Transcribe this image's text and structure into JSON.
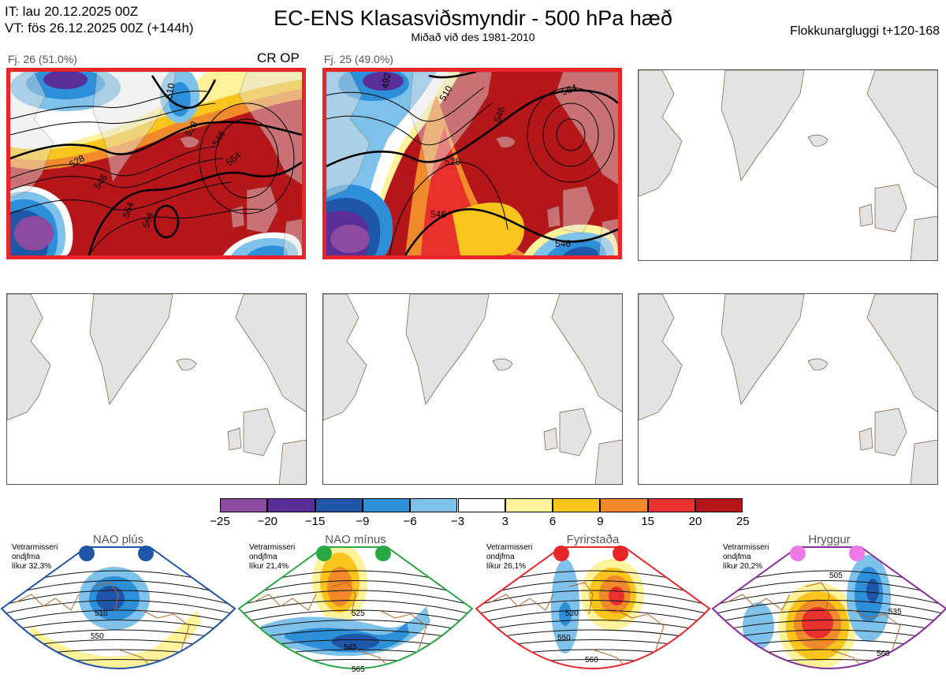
{
  "header": {
    "it_line": "IT: lau 20.12.2025 00Z",
    "vt_line": "VT: fös 26.12.2025 00Z  (+144h)",
    "title": "EC-ENS Klasasviðsmyndir - 500 hPa hæð",
    "subtitle": "Miðað við des 1981-2010",
    "window": "Flokkunargluggi t+120-168"
  },
  "clusters": [
    {
      "label": "Fj. 26 (51.0%)",
      "tag": "CR OP",
      "contours": [
        "528",
        "546",
        "564",
        "510",
        "546",
        "528",
        "564"
      ]
    },
    {
      "label": "Fj. 25 (49.0%)",
      "tag": "",
      "contours": [
        "510",
        "528",
        "546",
        "564",
        "546",
        "546",
        "564",
        "492"
      ]
    }
  ],
  "colorbar": {
    "ticks": [
      "−25",
      "−20",
      "−15",
      "−9",
      "−6",
      "−3",
      "3",
      "6",
      "9",
      "15",
      "20",
      "25"
    ],
    "colors": [
      "#8c4aa0",
      "#5a2e98",
      "#1f56a8",
      "#2c8fd8",
      "#7ec1ea",
      "#ffffff",
      "#fff29a",
      "#f9c51c",
      "#f08a2a",
      "#e8302c",
      "#b4161a"
    ]
  },
  "regimes": [
    {
      "name": "NAO plús",
      "info1": "Vetrarmisseri",
      "info2": "ondjfma",
      "info3": "líkur 32,3%",
      "color": "#1f56a8",
      "dot": "#1f56a8",
      "contours": [
        "510",
        "550"
      ]
    },
    {
      "name": "NAO mínus",
      "info1": "Vetrarmisseri",
      "info2": "ondjfma",
      "info3": "líkur 21,4%",
      "color": "#2aa844",
      "dot": "#2aa844",
      "contours": [
        "525",
        "545",
        "565"
      ]
    },
    {
      "name": "Fyrirstaða",
      "info1": "Vetrarmisseri",
      "info2": "ondjfma",
      "info3": "líkur 26,1%",
      "color": "#e8262a",
      "dot": "#e8262a",
      "contours": [
        "520",
        "550",
        "560"
      ]
    },
    {
      "name": "Hryggur",
      "info1": "Vetrarmisseri",
      "info2": "ondjfma",
      "info3": "líkur 20,2%",
      "color": "#8a2d9c",
      "dot": "#ee7ae8",
      "contours": [
        "505",
        "535",
        "560"
      ]
    }
  ]
}
